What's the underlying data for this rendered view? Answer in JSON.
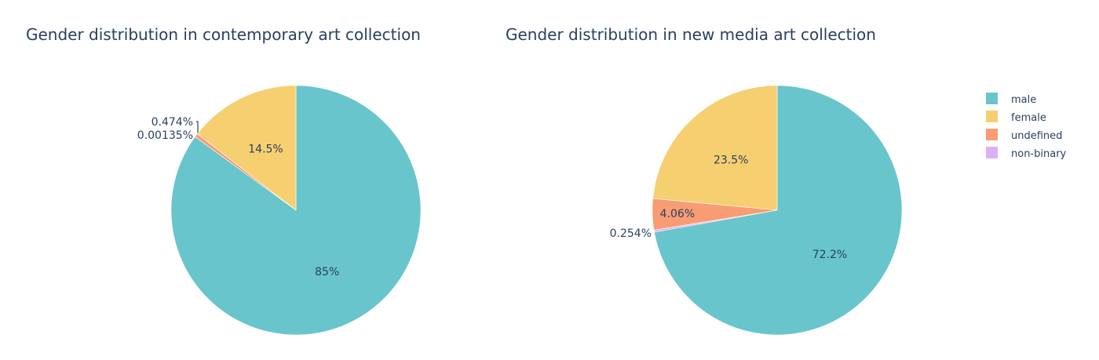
{
  "chart_data": [
    {
      "type": "pie",
      "title": "Gender distribution in contemporary art collection",
      "slices": [
        {
          "category": "male",
          "value": 85,
          "label": "85%"
        },
        {
          "category": "undefined",
          "value": 0.474,
          "label": "0.474%"
        },
        {
          "category": "non-binary",
          "value": 0.00135,
          "label": "0.00135%"
        },
        {
          "category": "female",
          "value": 14.5,
          "label": "14.5%"
        }
      ]
    },
    {
      "type": "pie",
      "title": "Gender distribution in new media art collection",
      "slices": [
        {
          "category": "male",
          "value": 72.2,
          "label": "72.2%"
        },
        {
          "category": "non-binary",
          "value": 0.254,
          "label": "0.254%"
        },
        {
          "category": "undefined",
          "value": 4.06,
          "label": "4.06%"
        },
        {
          "category": "female",
          "value": 23.5,
          "label": "23.5%"
        }
      ]
    }
  ],
  "legend": {
    "placement": "right",
    "items": [
      {
        "label": "male",
        "color": "#68c5cb"
      },
      {
        "label": "female",
        "color": "#f6cf71"
      },
      {
        "label": "undefined",
        "color": "#f89c74"
      },
      {
        "label": "non-binary",
        "color": "#dcb0f2"
      }
    ]
  },
  "colors": {
    "male": "#68c5cb",
    "female": "#f6cf71",
    "undefined": "#f89c74",
    "non-binary": "#dcb0f2"
  }
}
